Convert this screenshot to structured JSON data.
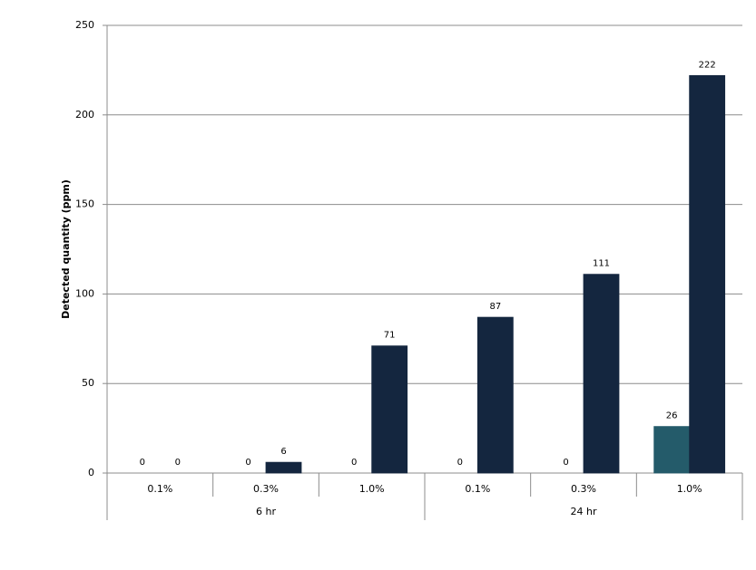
{
  "chart_data": {
    "type": "bar",
    "y_label": "Detected quantity (ppm)",
    "categories": [
      "0.1%",
      "0.3%",
      "1.0%",
      "0.1%",
      "0.3%",
      "1.0%"
    ],
    "groups": [
      "6 hr",
      "24 hr"
    ],
    "series": [
      {
        "color": "#245b6a",
        "values": [
          0,
          0,
          0,
          0,
          0,
          26
        ]
      },
      {
        "color": "#14263f",
        "values": [
          0,
          6,
          71,
          87,
          111,
          222
        ]
      }
    ],
    "ylim": [
      0,
      250
    ],
    "yticks": [
      0,
      50,
      100,
      150,
      200,
      250
    ],
    "grid": true
  }
}
